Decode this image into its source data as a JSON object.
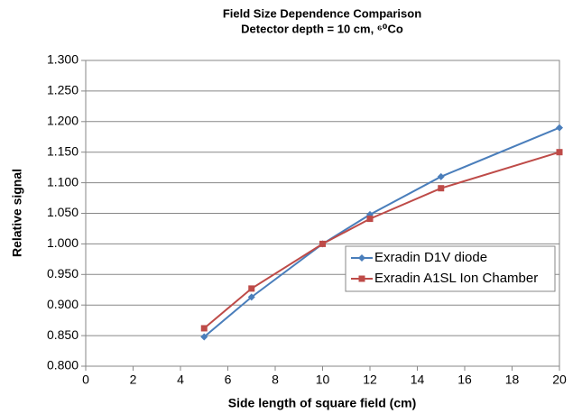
{
  "chart_data": {
    "type": "line",
    "title": "Field Size Dependence Comparison",
    "subtitle": "Detector depth = 10 cm, ⁶⁰Co",
    "x_label": "Side length of square field (cm)",
    "y_label": "Relative signal",
    "x": [
      5,
      7,
      10,
      12,
      15,
      20
    ],
    "series": [
      {
        "name": "Exradin D1V diode",
        "color": "#4a7ebb",
        "marker": "diamond",
        "values": [
          0.848,
          0.913,
          1.0,
          1.048,
          1.11,
          1.19
        ]
      },
      {
        "name": "Exradin A1SL Ion Chamber",
        "color": "#be4b48",
        "marker": "square",
        "values": [
          0.862,
          0.927,
          1.0,
          1.041,
          1.091,
          1.15
        ]
      }
    ],
    "xlim": [
      0,
      20
    ],
    "xticks": [
      0,
      2,
      4,
      6,
      8,
      10,
      12,
      14,
      16,
      18,
      20
    ],
    "ylim": [
      0.8,
      1.3
    ],
    "yticks": [
      {
        "value": 0.8,
        "label": "0.800"
      },
      {
        "value": 0.85,
        "label": "0.850"
      },
      {
        "value": 0.9,
        "label": "0.900"
      },
      {
        "value": 0.95,
        "label": "0.950"
      },
      {
        "value": 1.0,
        "label": "1.000"
      },
      {
        "value": 1.05,
        "label": "1.050"
      },
      {
        "value": 1.1,
        "label": "1.100"
      },
      {
        "value": 1.15,
        "label": "1.150"
      },
      {
        "value": 1.2,
        "label": "1.200"
      },
      {
        "value": 1.25,
        "label": "1.250"
      },
      {
        "value": 1.3,
        "label": "1.300"
      }
    ],
    "grid": true,
    "legend": "right"
  }
}
